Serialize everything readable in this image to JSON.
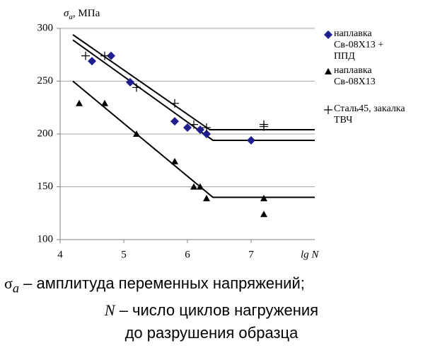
{
  "chart_data": {
    "type": "scatter",
    "y_label": {
      "symbol": "σ",
      "subscript": "a",
      "unit": ", МПа"
    },
    "x_label": "lg N",
    "xlim": [
      4,
      8
    ],
    "xticks": [
      4,
      5,
      6,
      7
    ],
    "ylim": [
      100,
      300
    ],
    "yticks": [
      100,
      150,
      200,
      250,
      300
    ],
    "grid": true,
    "series": [
      {
        "name": "наплавка Св-08Х13 + ППД",
        "marker": "diamond",
        "color": "#1f1f8f",
        "x": [
          4.5,
          4.8,
          5.1,
          5.8,
          6.0,
          6.2,
          6.3,
          7.0
        ],
        "values": [
          269,
          274,
          249,
          212,
          206,
          204,
          200,
          194
        ]
      },
      {
        "name": "наплавка Св-08Х13",
        "marker": "triangle",
        "color": "#000000",
        "x": [
          4.3,
          4.7,
          5.2,
          5.8,
          6.1,
          6.2,
          6.3,
          7.2,
          7.2
        ],
        "values": [
          229,
          229,
          200,
          174,
          150,
          150,
          139,
          139,
          124
        ]
      },
      {
        "name": "Сталь45, закалка ТВЧ",
        "marker": "plus",
        "color": "#000000",
        "x": [
          4.4,
          4.7,
          5.2,
          5.8,
          6.1,
          6.3,
          7.2,
          7.2
        ],
        "values": [
          274,
          274,
          244,
          229,
          209,
          206,
          209,
          207
        ]
      }
    ],
    "fit_lines": [
      {
        "x": [
          4.2,
          6.35,
          8
        ],
        "values": [
          294,
          204,
          204
        ]
      },
      {
        "x": [
          4.2,
          6.4,
          8
        ],
        "values": [
          289,
          194,
          194
        ]
      },
      {
        "x": [
          4.2,
          6.4,
          8
        ],
        "values": [
          250,
          140,
          140
        ]
      }
    ],
    "caption": [
      {
        "symbol": "σ",
        "subscript": "a",
        "text": " – амплитуда переменных напряжений;"
      },
      {
        "symbol": "N",
        "text": " – число циклов нагружения"
      },
      {
        "text": "до разрушения образца"
      }
    ]
  }
}
